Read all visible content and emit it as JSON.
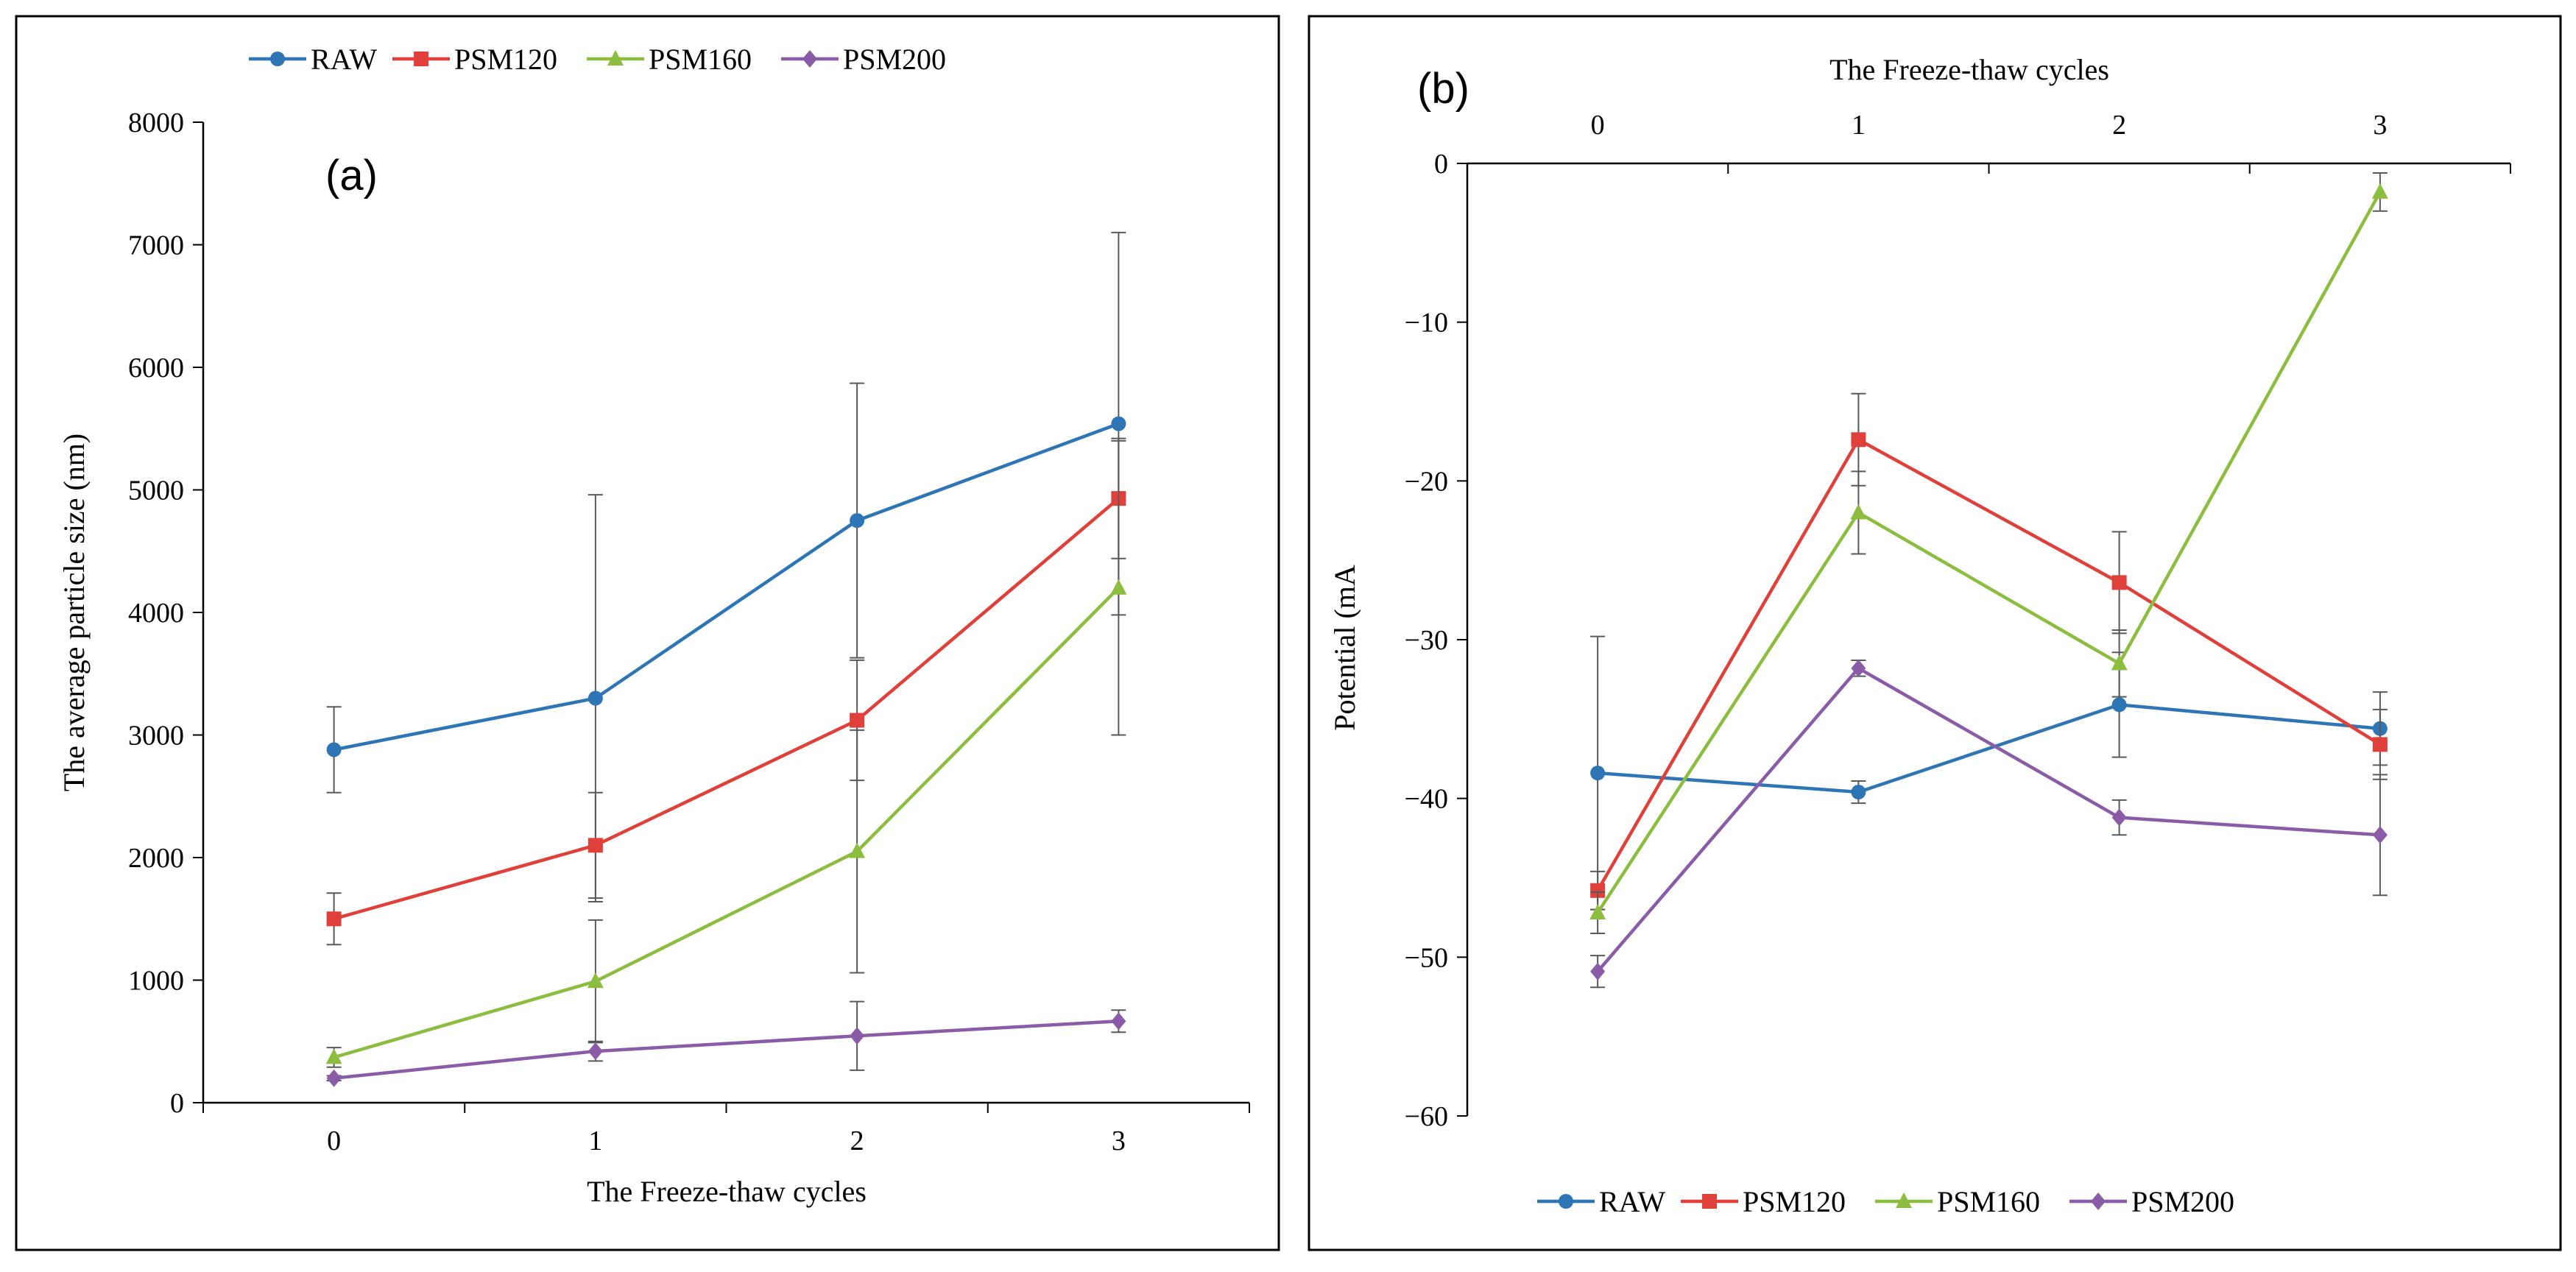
{
  "colors": {
    "RAW": "#2e75b6",
    "PSM120": "#e0403a",
    "PSM160": "#8cbd3f",
    "PSM200": "#8a5ca8",
    "axis": "#000000",
    "errorbar": "#595959"
  },
  "chart_data": [
    {
      "type": "line",
      "panel_label": "(a)",
      "xlabel": "The Freeze-thaw cycles",
      "ylabel": "The average particle size (nm)",
      "categories": [
        "0",
        "1",
        "2",
        "3"
      ],
      "ylim": [
        0,
        8000
      ],
      "yticks": [
        "0",
        "1000",
        "2000",
        "3000",
        "4000",
        "5000",
        "6000",
        "7000",
        "8000"
      ],
      "legend_position": "top",
      "series": [
        {
          "name": "RAW",
          "marker": "circle",
          "values": [
            2880,
            3300,
            4750,
            5540
          ],
          "errors": [
            350,
            1660,
            1120,
            1560
          ]
        },
        {
          "name": "PSM120",
          "marker": "square",
          "values": [
            1500,
            2100,
            3120,
            4930
          ],
          "errors": [
            210,
            430,
            490,
            490
          ]
        },
        {
          "name": "PSM160",
          "marker": "triangle",
          "values": [
            370,
            990,
            2050,
            4200
          ],
          "errors": [
            80,
            500,
            990,
            1200
          ]
        },
        {
          "name": "PSM200",
          "marker": "diamond",
          "values": [
            200,
            420,
            545,
            665
          ],
          "errors": [
            20,
            80,
            280,
            90
          ]
        }
      ]
    },
    {
      "type": "line",
      "panel_label": "(b)",
      "xlabel": "The Freeze-thaw cycles",
      "ylabel": "Potential (mA",
      "categories": [
        "0",
        "1",
        "2",
        "3"
      ],
      "ylim": [
        -60,
        0
      ],
      "yticks": [
        "-60",
        "-50",
        "-40",
        "-30",
        "-20",
        "-10",
        "0"
      ],
      "x_axis_position": "top",
      "legend_position": "bottom",
      "series": [
        {
          "name": "RAW",
          "marker": "circle",
          "values": [
            -38.4,
            -39.6,
            -34.1,
            -35.6
          ],
          "errors": [
            8.6,
            0.7,
            3.3,
            2.3
          ]
        },
        {
          "name": "PSM120",
          "marker": "square",
          "values": [
            -45.8,
            -17.4,
            -26.4,
            -36.6
          ],
          "errors": [
            1.2,
            2.9,
            3.2,
            2.2
          ]
        },
        {
          "name": "PSM160",
          "marker": "triangle",
          "values": [
            -47.2,
            -22.0,
            -31.5,
            -1.8
          ],
          "errors": [
            1.3,
            2.6,
            2.1,
            1.2
          ]
        },
        {
          "name": "PSM200",
          "marker": "diamond",
          "values": [
            -50.9,
            -31.8,
            -41.2,
            -42.3
          ],
          "errors": [
            1.0,
            0.5,
            1.1,
            3.8
          ]
        }
      ]
    }
  ]
}
